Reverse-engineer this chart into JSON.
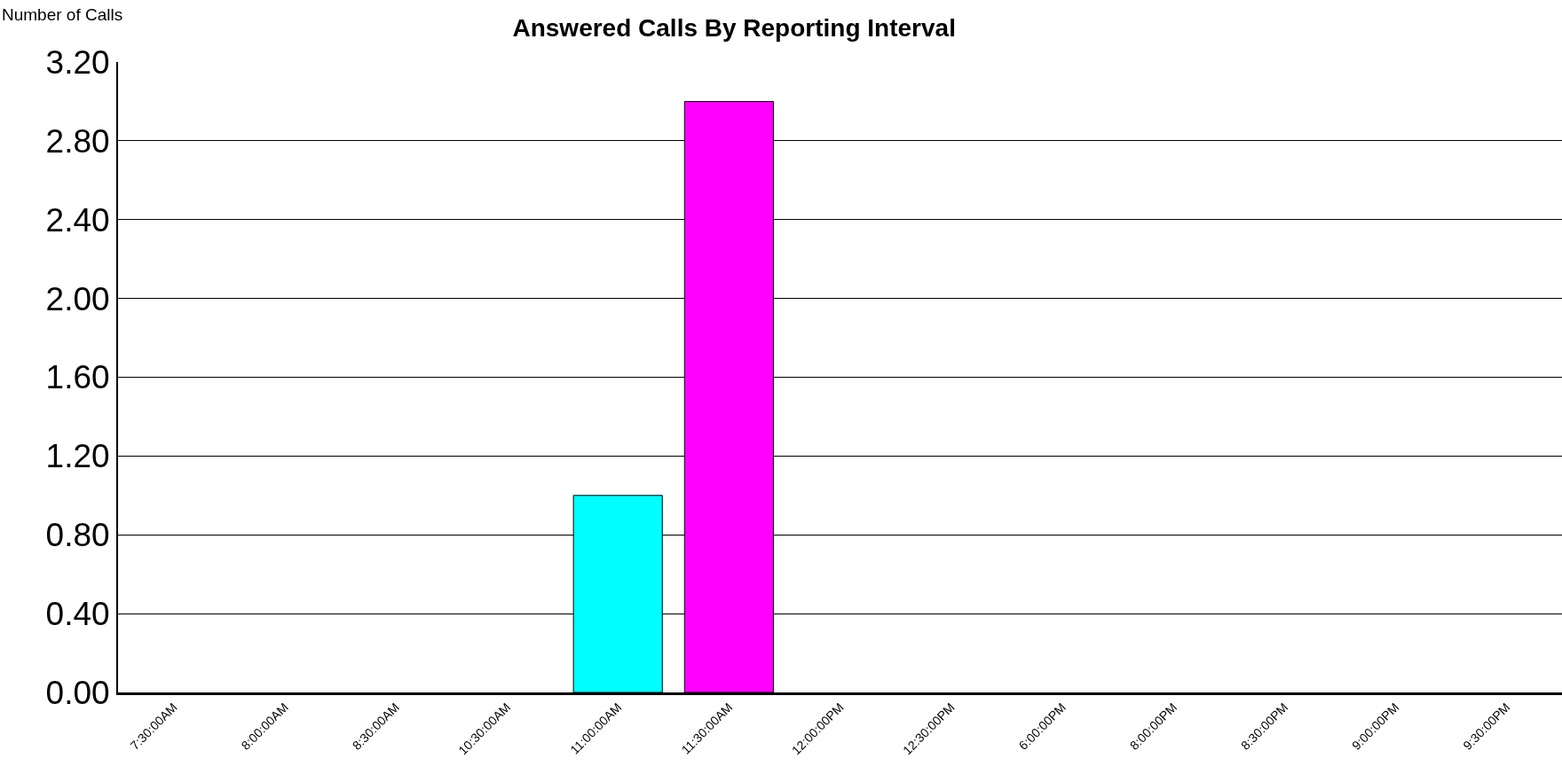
{
  "chart_data": {
    "type": "bar",
    "title": "Answered Calls By Reporting Interval",
    "ylabel": "Number of Calls",
    "categories": [
      "7:30:00AM",
      "8:00:00AM",
      "8:30:00AM",
      "10:30:00AM",
      "11:00:00AM",
      "11:30:00AM",
      "12:00:00PM",
      "12:30:00PM",
      "6:00:00PM",
      "8:00:00PM",
      "8:30:00PM",
      "9:00:00PM",
      "9:30:00PM"
    ],
    "values": [
      0,
      0,
      0,
      0,
      1,
      3,
      0,
      0,
      0,
      0,
      0,
      0,
      0
    ],
    "colors": [
      null,
      null,
      null,
      null,
      "#00ffff",
      "#ff00ff",
      null,
      null,
      null,
      null,
      null,
      null,
      null
    ],
    "ylim": [
      0,
      3.2
    ],
    "yticks": [
      {
        "value": 0,
        "label": "0.00"
      },
      {
        "value": 0.4,
        "label": "0.40"
      },
      {
        "value": 0.8,
        "label": "0.80"
      },
      {
        "value": 1.2,
        "label": "1.20"
      },
      {
        "value": 1.6,
        "label": "1.60"
      },
      {
        "value": 2.0,
        "label": "2.00"
      },
      {
        "value": 2.4,
        "label": "2.40"
      },
      {
        "value": 2.8,
        "label": "2.80"
      },
      {
        "value": 3.2,
        "label": "3.20"
      }
    ],
    "grid": "y"
  }
}
